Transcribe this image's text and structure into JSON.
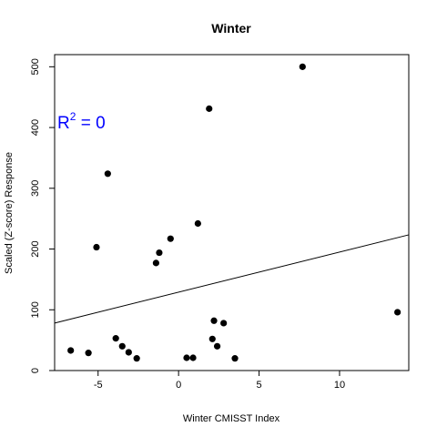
{
  "chart_data": {
    "type": "scatter",
    "title": "Winter",
    "xlabel": "Winter CMISST Index",
    "ylabel": "Scaled (Z-score) Response",
    "xlim": [
      -7.7,
      14.3
    ],
    "ylim": [
      0,
      520
    ],
    "xticks": [
      -5,
      0,
      5,
      10
    ],
    "yticks": [
      0,
      100,
      200,
      300,
      400,
      500
    ],
    "grid": false,
    "annotation": {
      "base": "R",
      "superscript": "2",
      "rest": " = 0",
      "color": "#0000ff"
    },
    "points": [
      {
        "x": -6.7,
        "y": 33
      },
      {
        "x": -5.6,
        "y": 29
      },
      {
        "x": -5.1,
        "y": 203
      },
      {
        "x": -4.4,
        "y": 324
      },
      {
        "x": -3.9,
        "y": 53
      },
      {
        "x": -3.5,
        "y": 40
      },
      {
        "x": -3.1,
        "y": 30
      },
      {
        "x": -2.6,
        "y": 20
      },
      {
        "x": -1.4,
        "y": 177
      },
      {
        "x": -1.2,
        "y": 194
      },
      {
        "x": -0.5,
        "y": 217
      },
      {
        "x": 0.5,
        "y": 21
      },
      {
        "x": 0.9,
        "y": 21
      },
      {
        "x": 1.2,
        "y": 242
      },
      {
        "x": 1.9,
        "y": 431
      },
      {
        "x": 2.1,
        "y": 52
      },
      {
        "x": 2.2,
        "y": 82
      },
      {
        "x": 2.4,
        "y": 40
      },
      {
        "x": 2.8,
        "y": 78
      },
      {
        "x": 3.5,
        "y": 20
      },
      {
        "x": 7.7,
        "y": 500
      },
      {
        "x": 13.6,
        "y": 96
      }
    ],
    "fit_line": {
      "intercept": 129,
      "slope": 6.6
    }
  }
}
